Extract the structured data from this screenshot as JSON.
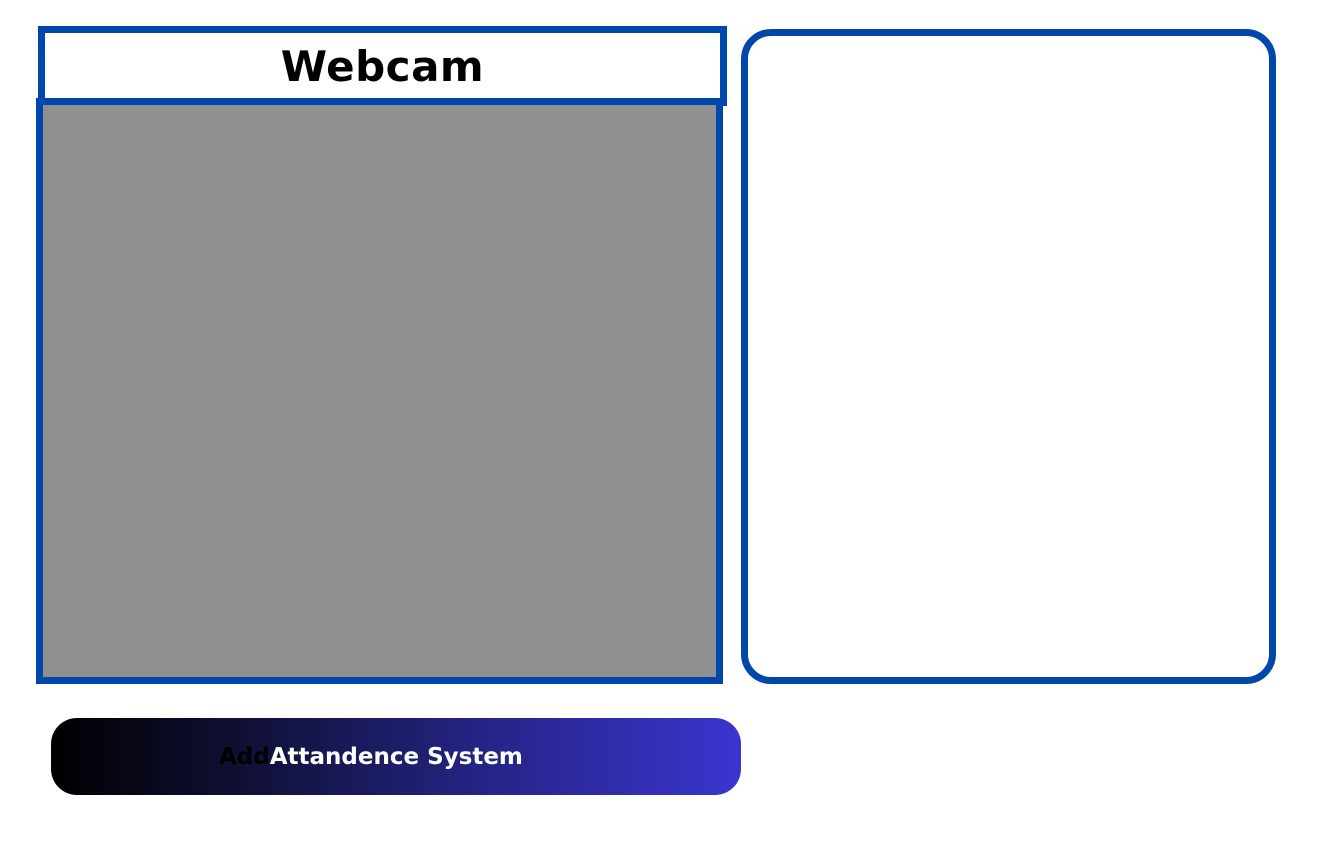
{
  "webcam": {
    "title": "Webcam"
  },
  "button": {
    "dark_part": "Add",
    "light_part": "Attandence System"
  },
  "colors": {
    "border": "#0047AB",
    "feed_background": "#909090",
    "button_gradient_start": "#000000",
    "button_gradient_end": "#3a35cf"
  }
}
